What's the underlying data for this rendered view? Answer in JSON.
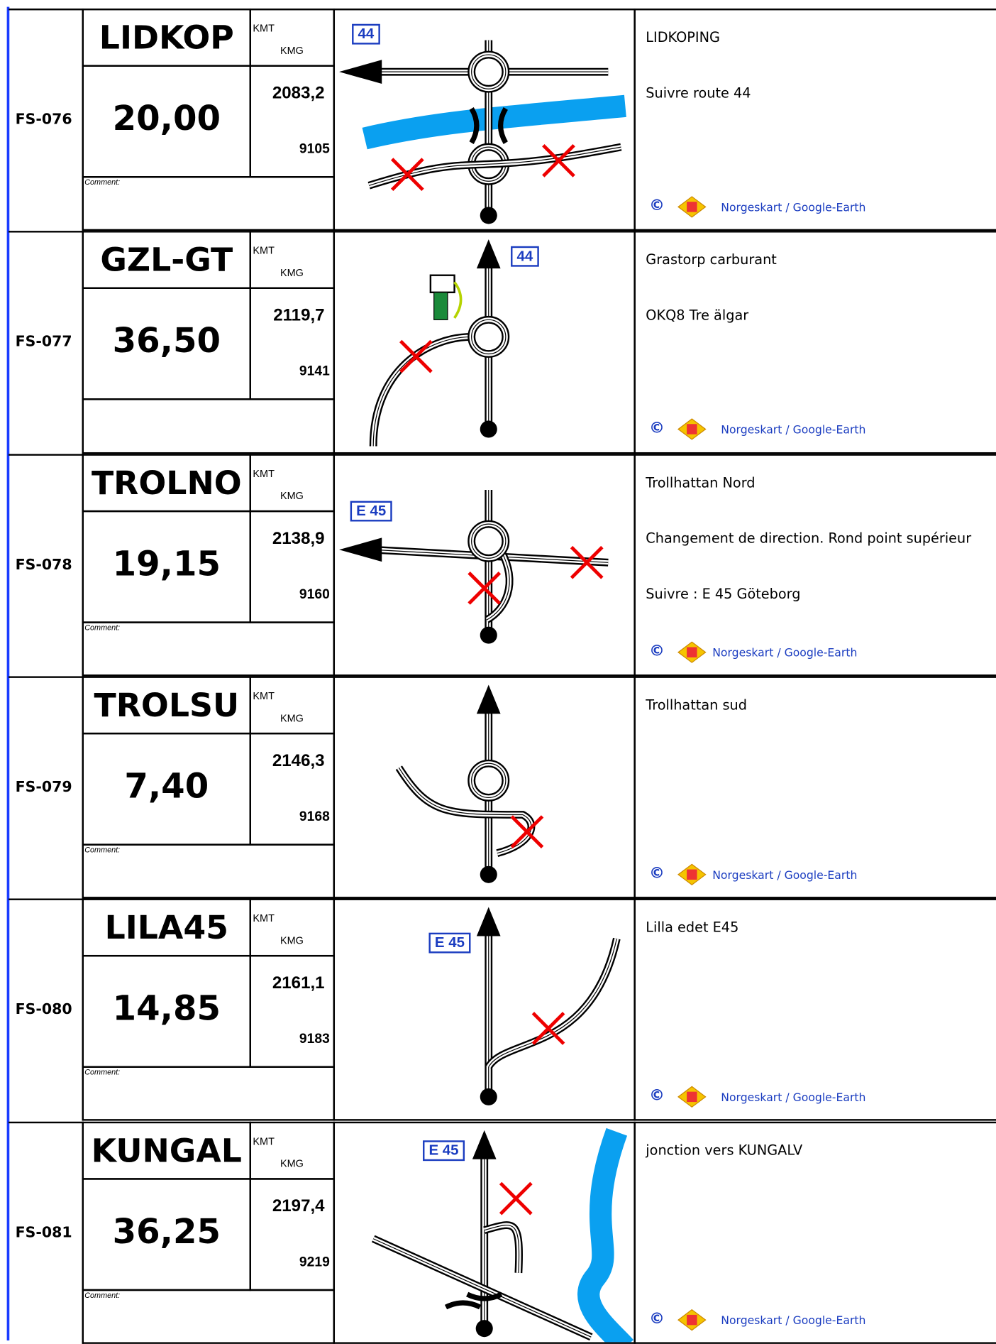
{
  "rows": [
    {
      "code": "FS-076",
      "name": "LIDKOP",
      "kmt_label": "KMT",
      "kmg_label": "KMG",
      "distance": "20,00",
      "kmt": "2083,2",
      "kmg": "9105",
      "comment": "Comment:",
      "route": "44",
      "lines": [
        "LIDKOPING",
        "Suivre route 44"
      ],
      "copyright": "©",
      "credit": "Norgeskart / Google-Earth"
    },
    {
      "code": "FS-077",
      "name": "GZL-GT",
      "kmt_label": "KMT",
      "kmg_label": "KMG",
      "distance": "36,50",
      "kmt": "2119,7",
      "kmg": "9141",
      "route": "44",
      "lines": [
        "Grastorp carburant",
        "OKQ8 Tre älgar"
      ],
      "copyright": "©",
      "credit": "Norgeskart / Google-Earth"
    },
    {
      "code": "FS-078",
      "name": "TROLNO",
      "kmt_label": "KMT",
      "kmg_label": "KMG",
      "distance": "19,15",
      "kmt": "2138,9",
      "kmg": "9160",
      "comment": "Comment:",
      "route": "E 45",
      "lines": [
        "Trollhattan Nord",
        "Changement de direction. Rond point supérieur",
        "Suivre : E 45 Göteborg"
      ],
      "copyright": "©",
      "credit": "Norgeskart / Google-Earth"
    },
    {
      "code": "FS-079",
      "name": "TROLSU",
      "kmt_label": "KMT",
      "kmg_label": "KMG",
      "distance": "7,40",
      "kmt": "2146,3",
      "kmg": "9168",
      "comment": "Comment:",
      "lines": [
        "Trollhattan sud"
      ],
      "copyright": "©",
      "credit": "Norgeskart / Google-Earth"
    },
    {
      "code": "FS-080",
      "name": "LILA45",
      "kmt_label": "KMT",
      "kmg_label": "KMG",
      "distance": "14,85",
      "kmt": "2161,1",
      "kmg": "9183",
      "comment": "Comment:",
      "route": "E 45",
      "lines": [
        "Lilla edet E45"
      ],
      "copyright": "©",
      "credit": "Norgeskart / Google-Earth"
    },
    {
      "code": "FS-081",
      "name": "KUNGAL",
      "kmt_label": "KMT",
      "kmg_label": "KMG",
      "distance": "36,25",
      "kmt": "2197,4",
      "kmg": "9219",
      "comment": "Comment:",
      "route": "E 45",
      "lines": [
        "jonction vers KUNGALV"
      ],
      "copyright": "©",
      "credit": "Norgeskart / Google-Earth"
    }
  ]
}
